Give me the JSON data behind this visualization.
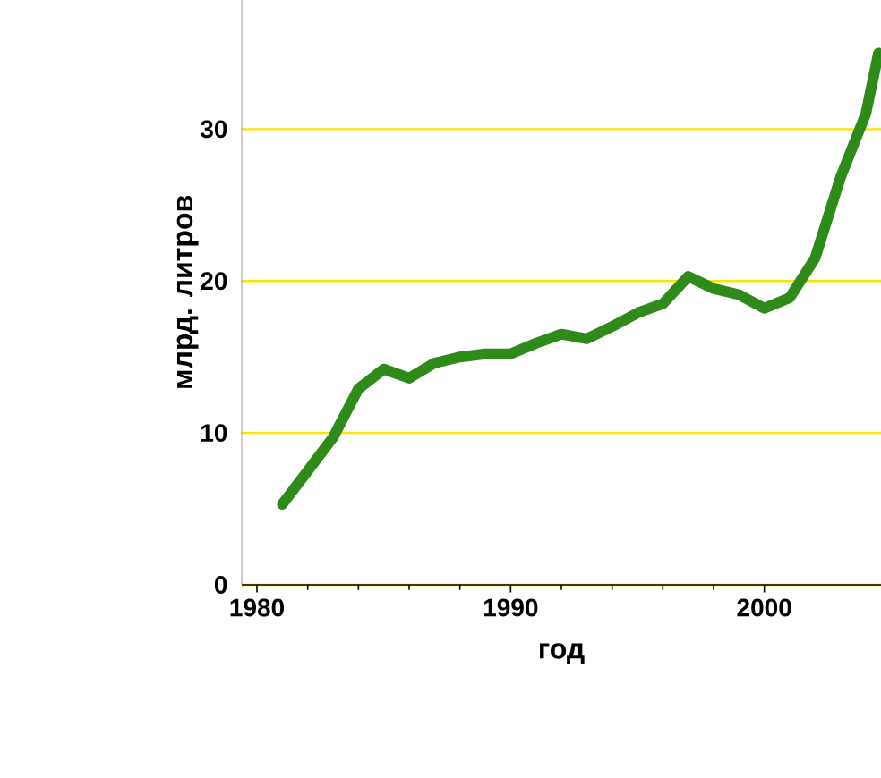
{
  "chart_data": {
    "type": "line",
    "xlabel": "год",
    "ylabel": "млрд. литров",
    "x": [
      1981,
      1982,
      1983,
      1984,
      1985,
      1986,
      1987,
      1988,
      1989,
      1990,
      1991,
      1992,
      1993,
      1994,
      1995,
      1996,
      1997,
      1998,
      1999,
      2000,
      2001,
      2002,
      2003,
      2004,
      2004.5
    ],
    "series": [
      {
        "color": "#2e8b1a",
        "values": [
          5.3,
          7.5,
          9.7,
          12.9,
          14.2,
          13.6,
          14.6,
          15.0,
          15.2,
          15.2,
          15.9,
          16.5,
          16.2,
          17.0,
          17.9,
          18.5,
          20.3,
          19.5,
          19.1,
          18.2,
          18.9,
          21.5,
          26.8,
          31,
          35
        ]
      }
    ],
    "xlim": [
      1979.4,
      2004.6
    ],
    "ylim": [
      0,
      38.5
    ],
    "xticks": [
      1980,
      1990,
      2000
    ],
    "yticks": [
      0,
      10,
      20,
      30
    ],
    "grid": "y",
    "marker": "none",
    "line_style": "solid"
  }
}
